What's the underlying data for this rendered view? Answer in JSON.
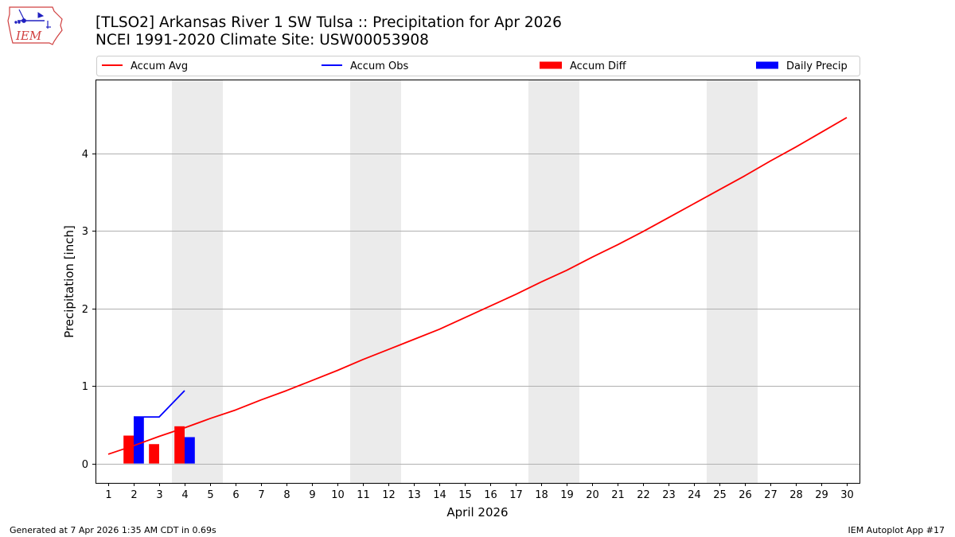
{
  "colors": {
    "avg": "#ff0000",
    "obs": "#0000ff",
    "diff": "#ff0000",
    "precip": "#0000ff",
    "weekend": "#ebebeb",
    "grid": "#b0b0b0"
  },
  "logo": {
    "text": "IEM"
  },
  "footer": {
    "left": "Generated at 7 Apr 2026 1:35 AM CDT in 0.69s",
    "right": "IEM Autoplot App #17"
  },
  "chart_data": {
    "type": "line",
    "title": "[TLSO2] Arkansas River 1 SW Tulsa :: Precipitation for Apr 2026",
    "subtitle": "NCEI 1991-2020 Climate Site: USW00053908",
    "xlabel": "April 2026",
    "ylabel": "Precipitation [inch]",
    "xlim": [
      0.5,
      30.5
    ],
    "ylim": [
      -0.25,
      4.95
    ],
    "yticks": [
      0,
      1,
      2,
      3,
      4
    ],
    "x_ticks": [
      "1",
      "2",
      "3",
      "4",
      "5",
      "6",
      "7",
      "8",
      "9",
      "10",
      "11",
      "12",
      "13",
      "14",
      "15",
      "16",
      "17",
      "18",
      "19",
      "20",
      "21",
      "22",
      "23",
      "24",
      "25",
      "26",
      "27",
      "28",
      "29",
      "30"
    ],
    "weekend_spans": [
      [
        3.5,
        5.5
      ],
      [
        10.5,
        12.5
      ],
      [
        17.5,
        19.5
      ],
      [
        24.5,
        26.5
      ]
    ],
    "grid": true,
    "legend": {
      "placement": "top",
      "entries": [
        {
          "label": "Accum Avg",
          "kind": "line",
          "color": "#ff0000"
        },
        {
          "label": "Accum Obs",
          "kind": "line",
          "color": "#0000ff"
        },
        {
          "label": "Accum Diff",
          "kind": "bar",
          "color": "#ff0000"
        },
        {
          "label": "Daily Precip",
          "kind": "bar",
          "color": "#0000ff"
        }
      ]
    },
    "series": [
      {
        "name": "Accum Avg",
        "type": "line",
        "color": "#ff0000",
        "x": [
          1,
          2,
          3,
          4,
          5,
          6,
          7,
          8,
          9,
          10,
          11,
          12,
          13,
          14,
          15,
          16,
          17,
          18,
          19,
          20,
          21,
          22,
          23,
          24,
          25,
          26,
          27,
          28,
          29,
          30
        ],
        "values": [
          0.12,
          0.23,
          0.35,
          0.46,
          0.58,
          0.69,
          0.82,
          0.94,
          1.07,
          1.2,
          1.34,
          1.47,
          1.6,
          1.73,
          1.88,
          2.03,
          2.18,
          2.34,
          2.49,
          2.66,
          2.82,
          2.99,
          3.17,
          3.35,
          3.53,
          3.71,
          3.9,
          4.08,
          4.27,
          4.46
        ]
      },
      {
        "name": "Accum Obs",
        "type": "line",
        "color": "#0000ff",
        "x": [
          2,
          3,
          4
        ],
        "values": [
          0.6,
          0.6,
          0.94
        ]
      },
      {
        "name": "Accum Diff",
        "type": "bar",
        "color": "#ff0000",
        "x": [
          2,
          3,
          4
        ],
        "values": [
          0.36,
          0.25,
          0.48
        ]
      },
      {
        "name": "Daily Precip",
        "type": "bar",
        "color": "#0000ff",
        "x": [
          2,
          4
        ],
        "values": [
          0.6,
          0.34
        ]
      }
    ]
  }
}
